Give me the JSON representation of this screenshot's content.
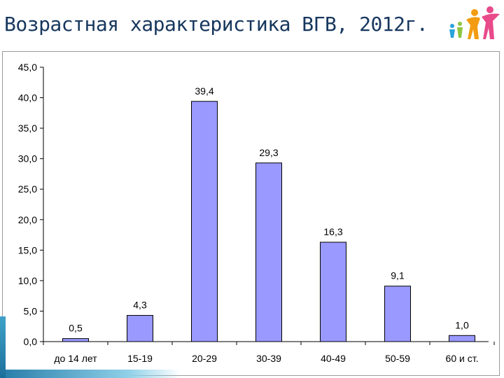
{
  "slide": {
    "title": "Возрастная характеристика ВГВ, 2012г."
  },
  "logo": {
    "icon": "people-figures-icon"
  },
  "colors": {
    "bar_fill": "#9999ff",
    "bar_stroke": "#000000",
    "title": "#17375e"
  },
  "chart_data": {
    "type": "bar",
    "categories": [
      "до 14 лет",
      "15-19",
      "20-29",
      "30-39",
      "40-49",
      "50-59",
      "60 и ст."
    ],
    "values": [
      0.5,
      4.3,
      39.4,
      29.3,
      16.3,
      9.1,
      1.0
    ],
    "value_labels": [
      "0,5",
      "4,3",
      "39,4",
      "29,3",
      "16,3",
      "9,1",
      "1,0"
    ],
    "y_ticks": [
      "0,0",
      "5,0",
      "10,0",
      "15,0",
      "20,0",
      "25,0",
      "30,0",
      "35,0",
      "40,0",
      "45,0"
    ],
    "ylim": [
      0,
      45
    ],
    "ystep": 5,
    "grid": false,
    "legend": "none",
    "xlabel": "",
    "ylabel": ""
  }
}
